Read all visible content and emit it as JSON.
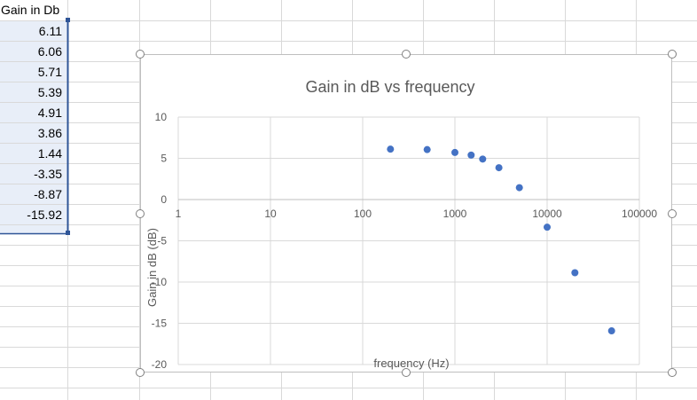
{
  "sheet": {
    "header_label": "Gain in Db",
    "gain_cells": [
      "6.11",
      "6.06",
      "5.71",
      "5.39",
      "4.91",
      "3.86",
      "1.44",
      "-3.35",
      "-8.87",
      "-15.92"
    ],
    "selection_color": "#e8eef8",
    "selection_border_color": "#2f5597",
    "grid_color": "#d9d9d9"
  },
  "chart_data": {
    "type": "scatter",
    "title": "Gain in dB vs frequency",
    "xlabel": "frequency (Hz)",
    "ylabel": "Gain in dB (dB)",
    "x_scale": "log",
    "xlim": [
      1,
      100000
    ],
    "ylim": [
      -20,
      10
    ],
    "x_ticks": [
      "1",
      "10",
      "100",
      "1000",
      "10000",
      "100000"
    ],
    "y_ticks": [
      "10",
      "5",
      "0",
      "-5",
      "-10",
      "-15",
      "-20"
    ],
    "grid": true,
    "point_color": "#4472c4",
    "series": [
      {
        "x": [
          200,
          500,
          1000,
          1500,
          2000,
          3000,
          5000,
          10000,
          20000,
          50000
        ],
        "y": [
          6.11,
          6.06,
          5.71,
          5.39,
          4.91,
          3.86,
          1.44,
          -3.35,
          -8.87,
          -15.92
        ]
      }
    ]
  }
}
